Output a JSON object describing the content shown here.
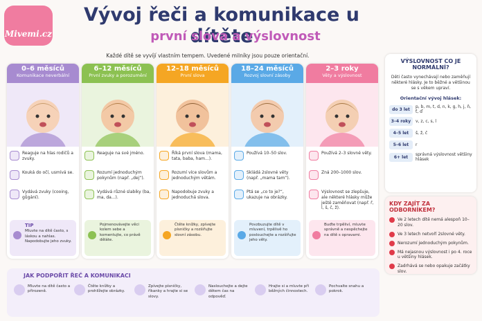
{
  "header": {
    "logo": "Mivemi.cz",
    "title": "Vývoj řeči a komunikace u dítěte",
    "subtitle": "první slova a výslovnost",
    "intro": "Každé dítě se vyvíjí vlastním tempem. Uvedené milníky jsou pouze orientační."
  },
  "stages": [
    {
      "age": "0–6 měsíců",
      "label": "Komunikace neverbální",
      "items": [
        "Reaguje na hlas rodičů a zvuky.",
        "Kouká do očí, usmívá se.",
        "Vydává zvuky (cooing, gůgání)."
      ],
      "tip_title": "TIP",
      "tip": "Mluvte na dítě často, s láskou a nahlas. Napodobujte jeho zvuky."
    },
    {
      "age": "6–12 měsíců",
      "label": "První zvuky a porozumění",
      "items": [
        "Reaguje na své jméno.",
        "Rozumí jednoduchým pokynům (např. „dej“).",
        "Vydává různé slabiky (ba, ma, da...)."
      ],
      "tip": "Pojmenovávejte věci kolem sebe a komentujte, co právě děláte."
    },
    {
      "age": "12–18 měsíců",
      "label": "První slova",
      "items": [
        "Říká první slova (mama, tata, baba, ham...).",
        "Rozumí více slovům a jednoduchým větám.",
        "Napodobuje zvuky a jednoduchá slova."
      ],
      "tip": "Čtěte knížky, zpívejte písničky a rozšiřujte slovní zásobu."
    },
    {
      "age": "18–24 měsíců",
      "label": "Rozvoj slovní zásoby",
      "items": [
        "Používá 10–50 slov.",
        "Skládá 2slovné věty (např. „mama tam“).",
        "Ptá se „co to je?“, ukazuje na obrázky."
      ],
      "tip": "Povzbuzujte dítě v mluvení, trpělivě ho poslouchejte a rozšiřujte jeho věty."
    },
    {
      "age": "2–3 roky",
      "label": "Věty a výslovnost",
      "items": [
        "Používá 2–3 slovné věty.",
        "Zná 200–1000 slov.",
        "Výslovnost se zlepšuje, ale některé hlásky může ještě zaměňovat (např. ř, l, š, č, ž)."
      ],
      "tip": "Buďte trpěliví, mluvte správně a nespěchejte na dítě s opravami."
    }
  ],
  "pronunciation": {
    "title": "VÝSLOVNOST CO JE NORMÁLNÍ?",
    "text": "Děti často vynechávají nebo zaměňují některé hlásky. Je to běžné a většinou se s věkem upraví.",
    "table_title": "Orientační vývoj hlásek:",
    "rows": [
      [
        "do 3 let",
        "p, b, m, t, d, n, k, g, h, j, ň, ť, ď"
      ],
      [
        "3–4 roky",
        "v, z, c, s, l"
      ],
      [
        "4–5 let",
        "š, ž, č"
      ],
      [
        "5–6 let",
        "r"
      ],
      [
        "6+ let",
        "správná výslovnost většiny hlásek"
      ]
    ]
  },
  "specialist": {
    "title": "KDY ZAJÍT ZA ODBORNÍKEM?",
    "items": [
      "Ve 2 letech dítě nemá alespoň 10–20 slov.",
      "Ve 3 letech netvoří 2slovné věty.",
      "Nerozumí jednoduchým pokynům.",
      "Má nejasnou výslovnost i po 4. roce u většiny hlásek.",
      "Zadrhává se nebo opakuje začátky slov."
    ]
  },
  "support": {
    "title": "JAK PODPOŘIT ŘEČ A KOMUNIKACI",
    "items": [
      "Mluvte na dítě často a přirozeně.",
      "Čtěte knížky a prohlížejte obrázky.",
      "Zpívejte písničky, říkanky a hrajte si se slovy.",
      "Naslouchejte a dejte dětem čas na odpověď.",
      "Hrajte si a mluvte při běžných činnostech.",
      "Pochvalte snahu a pokrok."
    ]
  }
}
